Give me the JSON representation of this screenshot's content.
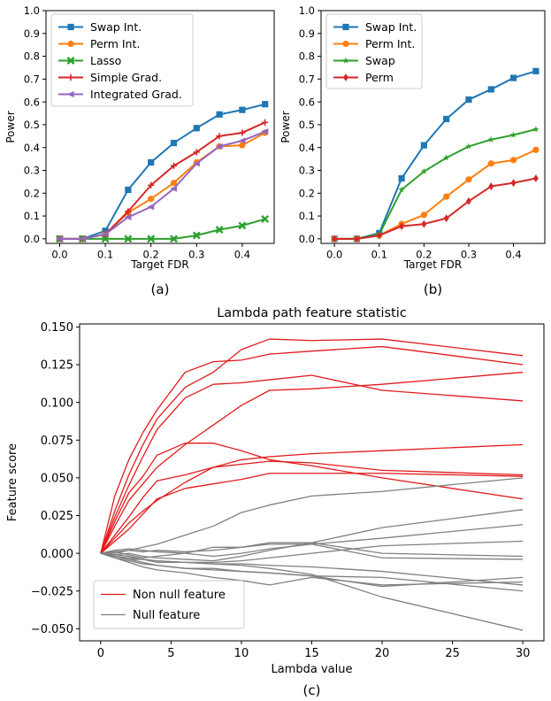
{
  "chart_data": [
    {
      "type": "line",
      "panel_label": "(a)",
      "title": "",
      "xlabel": "Target FDR",
      "ylabel": "Power",
      "xlim": [
        -0.03,
        0.47
      ],
      "ylim": [
        -0.02,
        1.0
      ],
      "xticks": [
        "0.0",
        "0.1",
        "0.2",
        "0.3",
        "0.4"
      ],
      "yticks": [
        "0.0",
        "0.1",
        "0.2",
        "0.3",
        "0.4",
        "0.5",
        "0.6",
        "0.7",
        "0.8",
        "0.9",
        "1.0"
      ],
      "grid": false,
      "legend_position": "top-left",
      "x": [
        0.0,
        0.05,
        0.1,
        0.15,
        0.2,
        0.25,
        0.3,
        0.35,
        0.4,
        0.45
      ],
      "series": [
        {
          "name": "Swap Int.",
          "color": "#1f77b4",
          "marker": "square",
          "values": [
            0.0,
            0.0,
            0.035,
            0.215,
            0.335,
            0.42,
            0.485,
            0.545,
            0.565,
            0.59
          ]
        },
        {
          "name": "Perm Int.",
          "color": "#ff7f0e",
          "marker": "circle",
          "values": [
            0.0,
            0.0,
            0.02,
            0.115,
            0.175,
            0.245,
            0.335,
            0.405,
            0.41,
            0.465
          ]
        },
        {
          "name": "Lasso",
          "color": "#2ca02c",
          "marker": "x",
          "values": [
            0.0,
            0.0,
            0.0,
            0.0,
            0.0,
            0.0,
            0.015,
            0.04,
            0.058,
            0.087
          ]
        },
        {
          "name": "Simple Grad.",
          "color": "#d62728",
          "marker": "plus",
          "values": [
            0.0,
            0.0,
            0.02,
            0.12,
            0.235,
            0.32,
            0.38,
            0.45,
            0.465,
            0.51
          ]
        },
        {
          "name": "Integrated Grad.",
          "color": "#9467bd",
          "marker": "triangle-left",
          "values": [
            0.0,
            0.0,
            0.02,
            0.095,
            0.14,
            0.22,
            0.33,
            0.405,
            0.43,
            0.47
          ]
        }
      ]
    },
    {
      "type": "line",
      "panel_label": "(b)",
      "title": "",
      "xlabel": "Target FDR",
      "ylabel": "Power",
      "xlim": [
        -0.03,
        0.47
      ],
      "ylim": [
        -0.02,
        1.0
      ],
      "xticks": [
        "0.0",
        "0.1",
        "0.2",
        "0.3",
        "0.4"
      ],
      "yticks": [
        "0.0",
        "0.1",
        "0.2",
        "0.3",
        "0.4",
        "0.5",
        "0.6",
        "0.7",
        "0.8",
        "0.9",
        "1.0"
      ],
      "grid": false,
      "legend_position": "top-left",
      "x": [
        0.0,
        0.05,
        0.1,
        0.15,
        0.2,
        0.25,
        0.3,
        0.35,
        0.4,
        0.45
      ],
      "series": [
        {
          "name": "Swap Int.",
          "color": "#1f77b4",
          "marker": "square",
          "values": [
            0.0,
            0.0,
            0.025,
            0.265,
            0.41,
            0.525,
            0.61,
            0.655,
            0.705,
            0.735
          ]
        },
        {
          "name": "Perm Int.",
          "color": "#ff7f0e",
          "marker": "circle",
          "values": [
            0.0,
            0.0,
            0.015,
            0.065,
            0.105,
            0.185,
            0.26,
            0.33,
            0.345,
            0.39
          ]
        },
        {
          "name": "Swap",
          "color": "#2ca02c",
          "marker": "star",
          "values": [
            0.0,
            0.0,
            0.02,
            0.215,
            0.295,
            0.355,
            0.405,
            0.435,
            0.455,
            0.48
          ]
        },
        {
          "name": "Perm",
          "color": "#d62728",
          "marker": "diamond",
          "values": [
            0.0,
            0.0,
            0.015,
            0.055,
            0.065,
            0.09,
            0.165,
            0.23,
            0.245,
            0.265
          ]
        }
      ]
    },
    {
      "type": "line",
      "panel_label": "(c)",
      "title": "Lambda path feature statistic",
      "xlabel": "Lambda value",
      "ylabel": "Feature score",
      "xlim": [
        -1.5,
        31.5
      ],
      "ylim": [
        -0.058,
        0.152
      ],
      "xticks": [
        "0",
        "5",
        "10",
        "15",
        "20",
        "25",
        "30"
      ],
      "yticks": [
        "−0.050",
        "−0.025",
        "0.000",
        "0.025",
        "0.050",
        "0.075",
        "0.100",
        "0.125",
        "0.150"
      ],
      "grid": false,
      "legend_position": "bottom-left",
      "x": [
        0,
        1,
        2,
        3,
        4,
        6,
        8,
        10,
        12,
        15,
        20,
        30
      ],
      "series": [
        {
          "name": "Non null feature",
          "color": "#e31a1c",
          "values": [
            0,
            0.038,
            0.062,
            0.08,
            0.095,
            0.12,
            0.127,
            0.128,
            0.132,
            0.134,
            0.137,
            0.125
          ]
        },
        {
          "name": "Non null feature",
          "color": "#e31a1c",
          "values": [
            0,
            0.028,
            0.052,
            0.072,
            0.089,
            0.11,
            0.12,
            0.135,
            0.142,
            0.141,
            0.142,
            0.131
          ]
        },
        {
          "name": "Non null feature",
          "color": "#e31a1c",
          "values": [
            0,
            0.024,
            0.045,
            0.064,
            0.082,
            0.103,
            0.112,
            0.113,
            0.115,
            0.118,
            0.108,
            0.101
          ]
        },
        {
          "name": "Non null feature",
          "color": "#e31a1c",
          "values": [
            0,
            0.018,
            0.035,
            0.046,
            0.057,
            0.072,
            0.085,
            0.098,
            0.108,
            0.109,
            0.112,
            0.12
          ]
        },
        {
          "name": "Non null feature",
          "color": "#e31a1c",
          "values": [
            0,
            0.021,
            0.04,
            0.051,
            0.065,
            0.073,
            0.073,
            0.068,
            0.062,
            0.058,
            0.05,
            0.036
          ]
        },
        {
          "name": "Non null feature",
          "color": "#e31a1c",
          "values": [
            0,
            0.012,
            0.024,
            0.037,
            0.048,
            0.052,
            0.057,
            0.062,
            0.064,
            0.066,
            0.068,
            0.072
          ]
        },
        {
          "name": "Non null feature",
          "color": "#e31a1c",
          "values": [
            0,
            0.01,
            0.02,
            0.028,
            0.035,
            0.047,
            0.057,
            0.059,
            0.061,
            0.06,
            0.055,
            0.052
          ]
        },
        {
          "name": "Non null feature",
          "color": "#e31a1c",
          "values": [
            0,
            0.008,
            0.016,
            0.026,
            0.036,
            0.043,
            0.046,
            0.049,
            0.053,
            0.053,
            0.053,
            0.051
          ]
        },
        {
          "name": "Null feature",
          "color": "#808080",
          "values": [
            0,
            0.001,
            0.002,
            0.004,
            0.006,
            0.012,
            0.018,
            0.027,
            0.032,
            0.038,
            0.041,
            0.05
          ]
        },
        {
          "name": "Null feature",
          "color": "#808080",
          "values": [
            0,
            -0.001,
            0.0,
            -0.002,
            -0.003,
            -0.004,
            -0.005,
            -0.002,
            0.002,
            0.007,
            0.017,
            0.029
          ]
        },
        {
          "name": "Null feature",
          "color": "#808080",
          "values": [
            0,
            0.002,
            0.003,
            0.002,
            0.001,
            0.0,
            -0.002,
            0.0,
            0.003,
            0.006,
            0.01,
            0.019
          ]
        },
        {
          "name": "Null feature",
          "color": "#808080",
          "values": [
            0,
            -0.002,
            -0.004,
            -0.004,
            -0.005,
            -0.006,
            -0.006,
            -0.005,
            -0.003,
            0.0,
            0.005,
            0.008
          ]
        },
        {
          "name": "Null feature",
          "color": "#808080",
          "values": [
            0,
            0.001,
            -0.001,
            -0.003,
            -0.002,
            0.0,
            0.004,
            0.004,
            0.006,
            0.006,
            -0.003,
            -0.004
          ]
        },
        {
          "name": "Null feature",
          "color": "#808080",
          "values": [
            0,
            0.0,
            0.002,
            0.001,
            0.002,
            0.001,
            0.002,
            0.004,
            0.007,
            0.007,
            0.0,
            -0.002
          ]
        },
        {
          "name": "Null feature",
          "color": "#808080",
          "values": [
            0,
            -0.003,
            -0.005,
            -0.007,
            -0.008,
            -0.01,
            -0.011,
            -0.012,
            -0.013,
            -0.015,
            -0.022,
            -0.016
          ]
        },
        {
          "name": "Null feature",
          "color": "#808080",
          "values": [
            0,
            -0.001,
            -0.002,
            -0.004,
            -0.006,
            -0.006,
            -0.007,
            -0.007,
            -0.008,
            -0.009,
            -0.012,
            -0.021
          ]
        },
        {
          "name": "Null feature",
          "color": "#808080",
          "values": [
            0,
            -0.002,
            -0.004,
            -0.006,
            -0.008,
            -0.01,
            -0.01,
            -0.012,
            -0.013,
            -0.015,
            -0.016,
            -0.025
          ]
        },
        {
          "name": "Null feature",
          "color": "#808080",
          "values": [
            0,
            -0.003,
            -0.006,
            -0.009,
            -0.011,
            -0.013,
            -0.016,
            -0.018,
            -0.021,
            -0.016,
            -0.021,
            -0.019
          ]
        },
        {
          "name": "Null feature",
          "color": "#808080",
          "values": [
            0,
            -0.002,
            -0.003,
            -0.004,
            -0.005,
            -0.006,
            -0.007,
            -0.008,
            -0.01,
            -0.014,
            -0.029,
            -0.051
          ]
        }
      ],
      "legend": [
        {
          "label": "Non null feature",
          "color": "#e31a1c"
        },
        {
          "label": "Null feature",
          "color": "#808080"
        }
      ]
    }
  ]
}
